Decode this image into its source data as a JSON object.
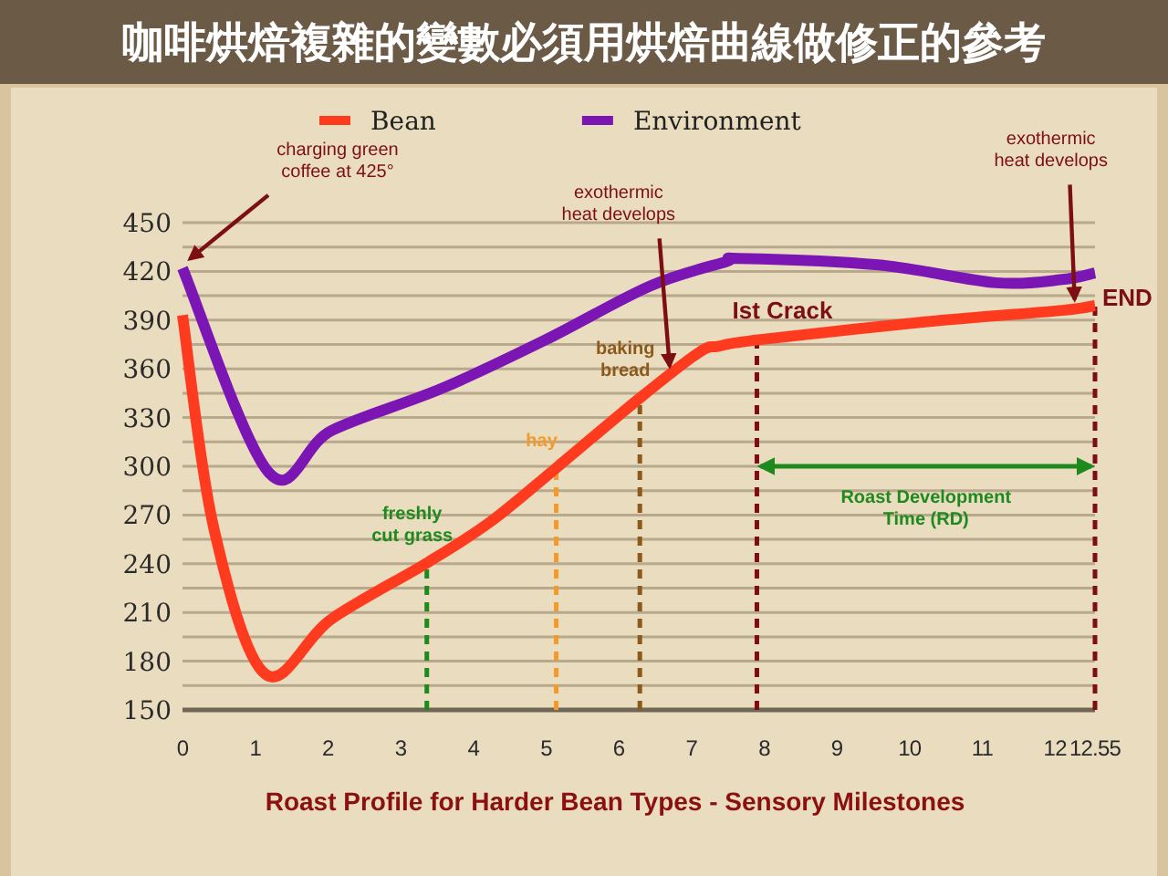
{
  "chart_data": {
    "type": "line",
    "title": "咖啡烘焙複雜的變數必須用烘焙曲線做修正的參考",
    "legend": "top",
    "grid": "y",
    "line_style": "solid",
    "series": [
      {
        "name": "Bean",
        "color": "#ff3b1f",
        "x": [
          0,
          0.43,
          1.14,
          2.05,
          3.38,
          4.24,
          5.14,
          6.29,
          7.1,
          7.38,
          7.95,
          10.24,
          12.1,
          12.55
        ],
        "values": [
          393,
          262,
          172,
          206,
          241,
          266,
          299,
          342,
          370,
          374,
          378,
          389,
          396,
          399
        ]
      },
      {
        "name": "Environment",
        "color": "#7b16b4",
        "x": [
          0,
          1.19,
          2.05,
          3.57,
          5.0,
          6.43,
          7.48,
          7.66,
          9.57,
          11.19,
          12.1,
          12.55
        ],
        "values": [
          422,
          296,
          322,
          348,
          378,
          411,
          426,
          428,
          424,
          413,
          415,
          419
        ]
      }
    ],
    "xlim": [
      0,
      12.55
    ],
    "xticks": [
      0,
      1,
      2,
      3,
      4,
      5,
      6,
      7,
      8,
      9,
      10,
      11,
      12,
      12.55
    ],
    "ylim": [
      150,
      450
    ],
    "yticks": [
      150,
      {
        "value": 165,
        "label": null
      },
      180,
      {
        "value": 195,
        "label": null
      },
      210,
      {
        "value": 225,
        "label": null
      },
      240,
      {
        "value": 255,
        "label": null
      },
      270,
      {
        "value": 285,
        "label": null
      },
      300,
      {
        "value": 315,
        "label": null
      },
      330,
      {
        "value": 345,
        "label": null
      },
      360,
      {
        "value": 375,
        "label": null
      },
      390,
      {
        "value": 405,
        "label": null
      },
      420,
      {
        "value": 435,
        "label": null
      },
      450
    ],
    "ref_lines": [
      {
        "axis": "x",
        "value": 3.36,
        "label": "freshly cut grass",
        "color": "#1e8a1e",
        "line_style": "dashed"
      },
      {
        "axis": "x",
        "value": 5.14,
        "label": "hay",
        "color": "#f39a2a",
        "line_style": "dashed"
      },
      {
        "axis": "x",
        "value": 6.29,
        "label": "baking bread",
        "color": "#8b5a1b",
        "line_style": "dashed"
      },
      {
        "axis": "x",
        "value": 7.9,
        "label": "Ist Crack",
        "color": "#7d0f12",
        "line_style": "dashed"
      },
      {
        "axis": "x",
        "value": 12.55,
        "label": "END",
        "color": "#7d0f12",
        "line_style": "dashed"
      }
    ],
    "annotations": [
      {
        "text": "charging green coffee at 425°",
        "x": 0,
        "y": 422
      },
      {
        "text": "exothermic heat develops",
        "x": 6.7,
        "y": 356
      },
      {
        "text": "exothermic heat develops",
        "x": 12.27,
        "y": 397
      },
      "Roast Development Time (RD)",
      "Roast Profile for Harder Bean Types - Sensory Milestones"
    ]
  }
}
